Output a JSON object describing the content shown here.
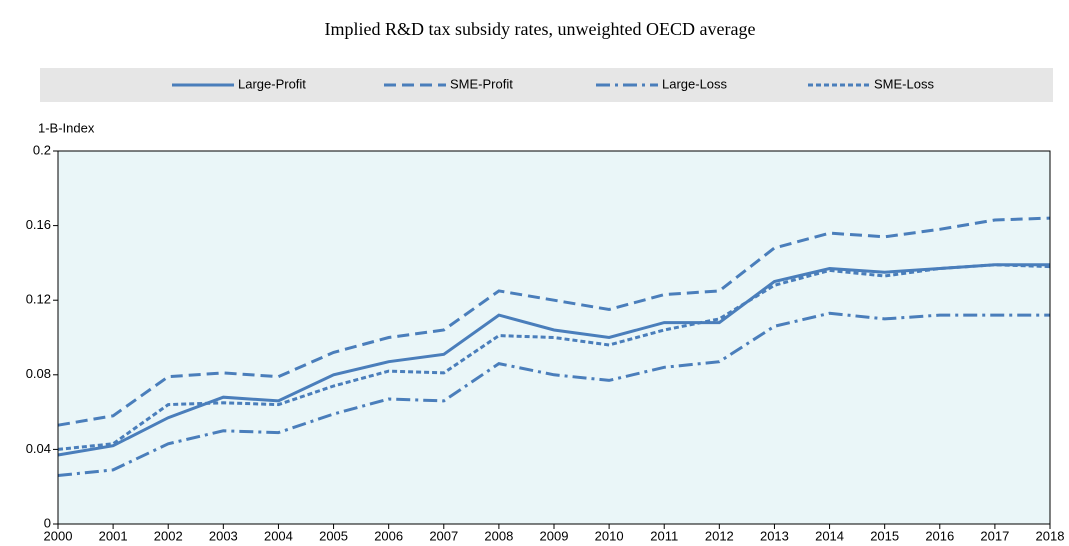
{
  "chart_data": {
    "type": "line",
    "title": "Implied R&D tax subsidy rates, unweighted OECD average",
    "y_label": "1-B-Index",
    "x": [
      2000,
      2001,
      2002,
      2003,
      2004,
      2005,
      2006,
      2007,
      2008,
      2009,
      2010,
      2011,
      2012,
      2013,
      2014,
      2015,
      2016,
      2017,
      2018
    ],
    "xlim": [
      2000,
      2018
    ],
    "xticks": [
      2000,
      2001,
      2002,
      2003,
      2004,
      2005,
      2006,
      2007,
      2008,
      2009,
      2010,
      2011,
      2012,
      2013,
      2014,
      2015,
      2016,
      2017,
      2018
    ],
    "ylim": [
      0,
      0.2
    ],
    "yticks": [
      0,
      0.04,
      0.08,
      0.12,
      0.16,
      0.2
    ],
    "grid": false,
    "plot_background": "#eaf6f8",
    "series": [
      {
        "name": "Large-Profit",
        "color": "#4a7ebb",
        "dash": "solid",
        "values": [
          0.037,
          0.042,
          0.057,
          0.068,
          0.066,
          0.08,
          0.087,
          0.091,
          0.112,
          0.104,
          0.1,
          0.108,
          0.108,
          0.13,
          0.137,
          0.135,
          0.137,
          0.139,
          0.139
        ]
      },
      {
        "name": "SME-Profit",
        "color": "#4a7ebb",
        "dash": "dashed",
        "values": [
          0.053,
          0.058,
          0.079,
          0.081,
          0.079,
          0.092,
          0.1,
          0.104,
          0.125,
          0.12,
          0.115,
          0.123,
          0.125,
          0.148,
          0.156,
          0.154,
          0.158,
          0.163,
          0.164
        ]
      },
      {
        "name": "Large-Loss",
        "color": "#4a7ebb",
        "dash": "dashdot",
        "values": [
          0.026,
          0.029,
          0.043,
          0.05,
          0.049,
          0.059,
          0.067,
          0.066,
          0.086,
          0.08,
          0.077,
          0.084,
          0.087,
          0.106,
          0.113,
          0.11,
          0.112,
          0.112,
          0.112
        ]
      },
      {
        "name": "SME-Loss",
        "color": "#4a7ebb",
        "dash": "dotted",
        "values": [
          0.04,
          0.043,
          0.064,
          0.065,
          0.064,
          0.074,
          0.082,
          0.081,
          0.101,
          0.1,
          0.096,
          0.104,
          0.11,
          0.128,
          0.136,
          0.133,
          0.137,
          0.139,
          0.138
        ]
      }
    ]
  }
}
